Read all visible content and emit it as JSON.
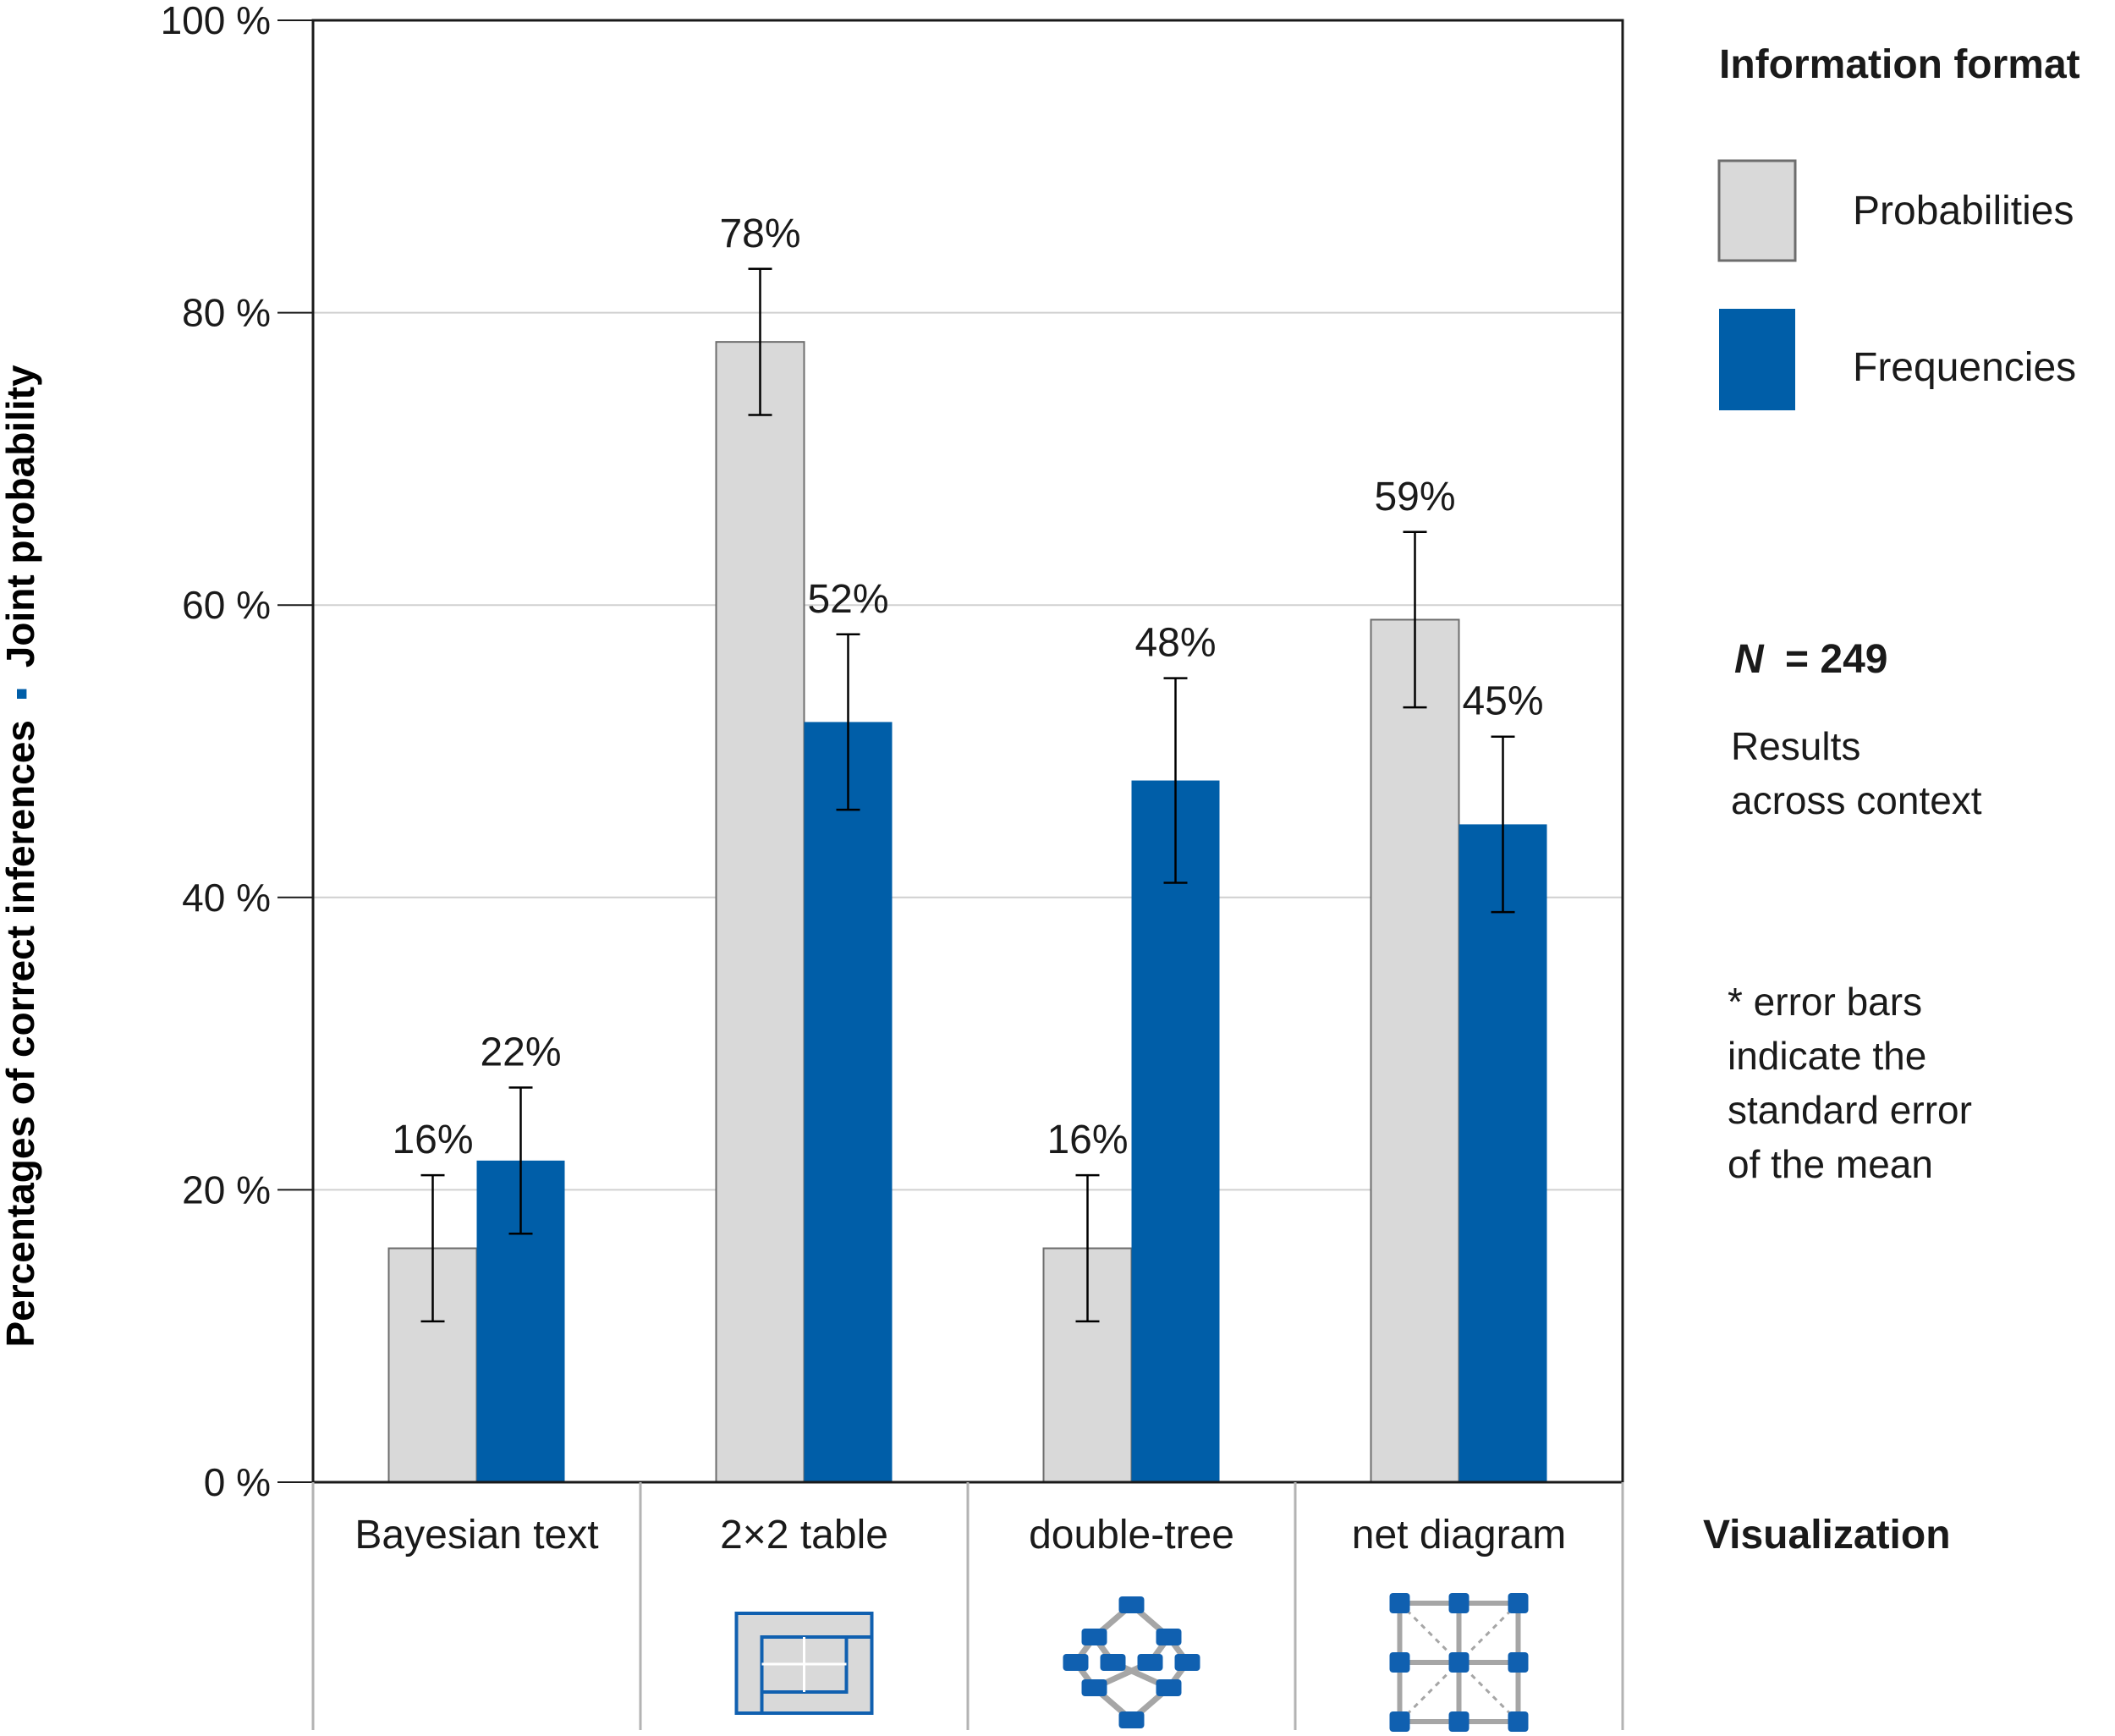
{
  "chart_data": {
    "type": "bar",
    "ylabel_part1": "Percentages of correct inferences",
    "ylabel_sep": "▪",
    "ylabel_part2": "Joint probability",
    "xlabel": "Visualization",
    "ylim": [
      0,
      100
    ],
    "yticks": [
      {
        "value": 0,
        "label": "0 %"
      },
      {
        "value": 20,
        "label": "20 %"
      },
      {
        "value": 40,
        "label": "40 %"
      },
      {
        "value": 60,
        "label": "60 %"
      },
      {
        "value": 80,
        "label": "80 %"
      },
      {
        "value": 100,
        "label": "100 %"
      }
    ],
    "grid": true,
    "categories": [
      "Bayesian text",
      "2×2 table",
      "double-tree",
      "net diagram"
    ],
    "category_icons": [
      "",
      "table-2x2-icon",
      "double-tree-icon",
      "net-diagram-icon"
    ],
    "series": [
      {
        "name": "Probabilities",
        "values": [
          16,
          78,
          16,
          59
        ],
        "labels": [
          "16%",
          "78%",
          "16%",
          "59%"
        ],
        "err_low": [
          11,
          73,
          11,
          53
        ],
        "err_high": [
          21,
          83,
          21,
          65
        ]
      },
      {
        "name": "Frequencies",
        "values": [
          22,
          52,
          48,
          45
        ],
        "labels": [
          "22%",
          "52%",
          "48%",
          "45%"
        ],
        "err_low": [
          17,
          46,
          41,
          39
        ],
        "err_high": [
          27,
          58,
          55,
          51
        ]
      }
    ],
    "legend_title": "Information format",
    "legend_position": "right",
    "n_prefix": "N",
    "n_value": "= 249",
    "results_note": [
      "Results",
      "across context"
    ],
    "error_note": [
      "* error bars",
      "indicate the",
      "standard error",
      "of the mean"
    ]
  },
  "colors": {
    "probabilities_fill": "#d9d9d9",
    "probabilities_stroke": "#6d6d6d",
    "frequencies_fill": "#005ea8",
    "grid": "#d0d0d0",
    "axis": "#1a1a1a",
    "separator": "#b3b3b3",
    "icon_gray": "#a6a6a6",
    "icon_blue": "#1060b0"
  }
}
